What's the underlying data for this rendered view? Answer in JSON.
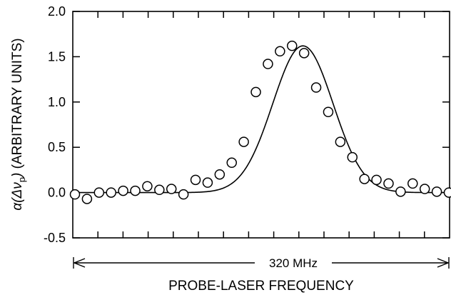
{
  "chart_data": {
    "type": "scatter",
    "title": "",
    "xlabel": "PROBE-LASER FREQUENCY",
    "ylabel_parts": {
      "main": "α(Δν",
      "subscript": "p",
      "close": ")",
      "suffix": " (ARBITRARY UNITS)"
    },
    "ylim": [
      -0.5,
      2.0
    ],
    "yticks": [
      "-0.5",
      "0.0",
      "0.5",
      "1.0",
      "1.5",
      "2.0"
    ],
    "yticks_values": [
      -0.5,
      0.0,
      0.5,
      1.0,
      1.5,
      2.0
    ],
    "xlim": [
      0,
      31
    ],
    "x_minor_ticks": 15,
    "grid": false,
    "span_annotation": "320 MHz",
    "series": [
      {
        "kind": "points",
        "x": [
          0,
          1,
          2,
          3,
          4,
          5,
          6,
          7,
          8,
          9,
          10,
          11,
          12,
          13,
          14,
          15,
          16,
          17,
          18,
          19,
          20,
          21,
          22,
          23,
          24,
          25,
          26,
          27,
          28,
          29,
          30,
          31
        ],
        "y": [
          -0.02,
          -0.07,
          0.0,
          0.0,
          0.02,
          0.02,
          0.07,
          0.03,
          0.04,
          -0.02,
          0.14,
          0.11,
          0.2,
          0.33,
          0.56,
          1.11,
          1.42,
          1.56,
          1.62,
          1.54,
          1.16,
          0.89,
          0.56,
          0.39,
          0.15,
          0.14,
          0.1,
          0.01,
          0.1,
          0.04,
          0.01,
          0.0
        ]
      },
      {
        "kind": "fit-line",
        "model": "gaussian",
        "center": 18.9,
        "amplitude": 1.62,
        "sigma": 2.5,
        "baseline": 0.0
      }
    ]
  }
}
